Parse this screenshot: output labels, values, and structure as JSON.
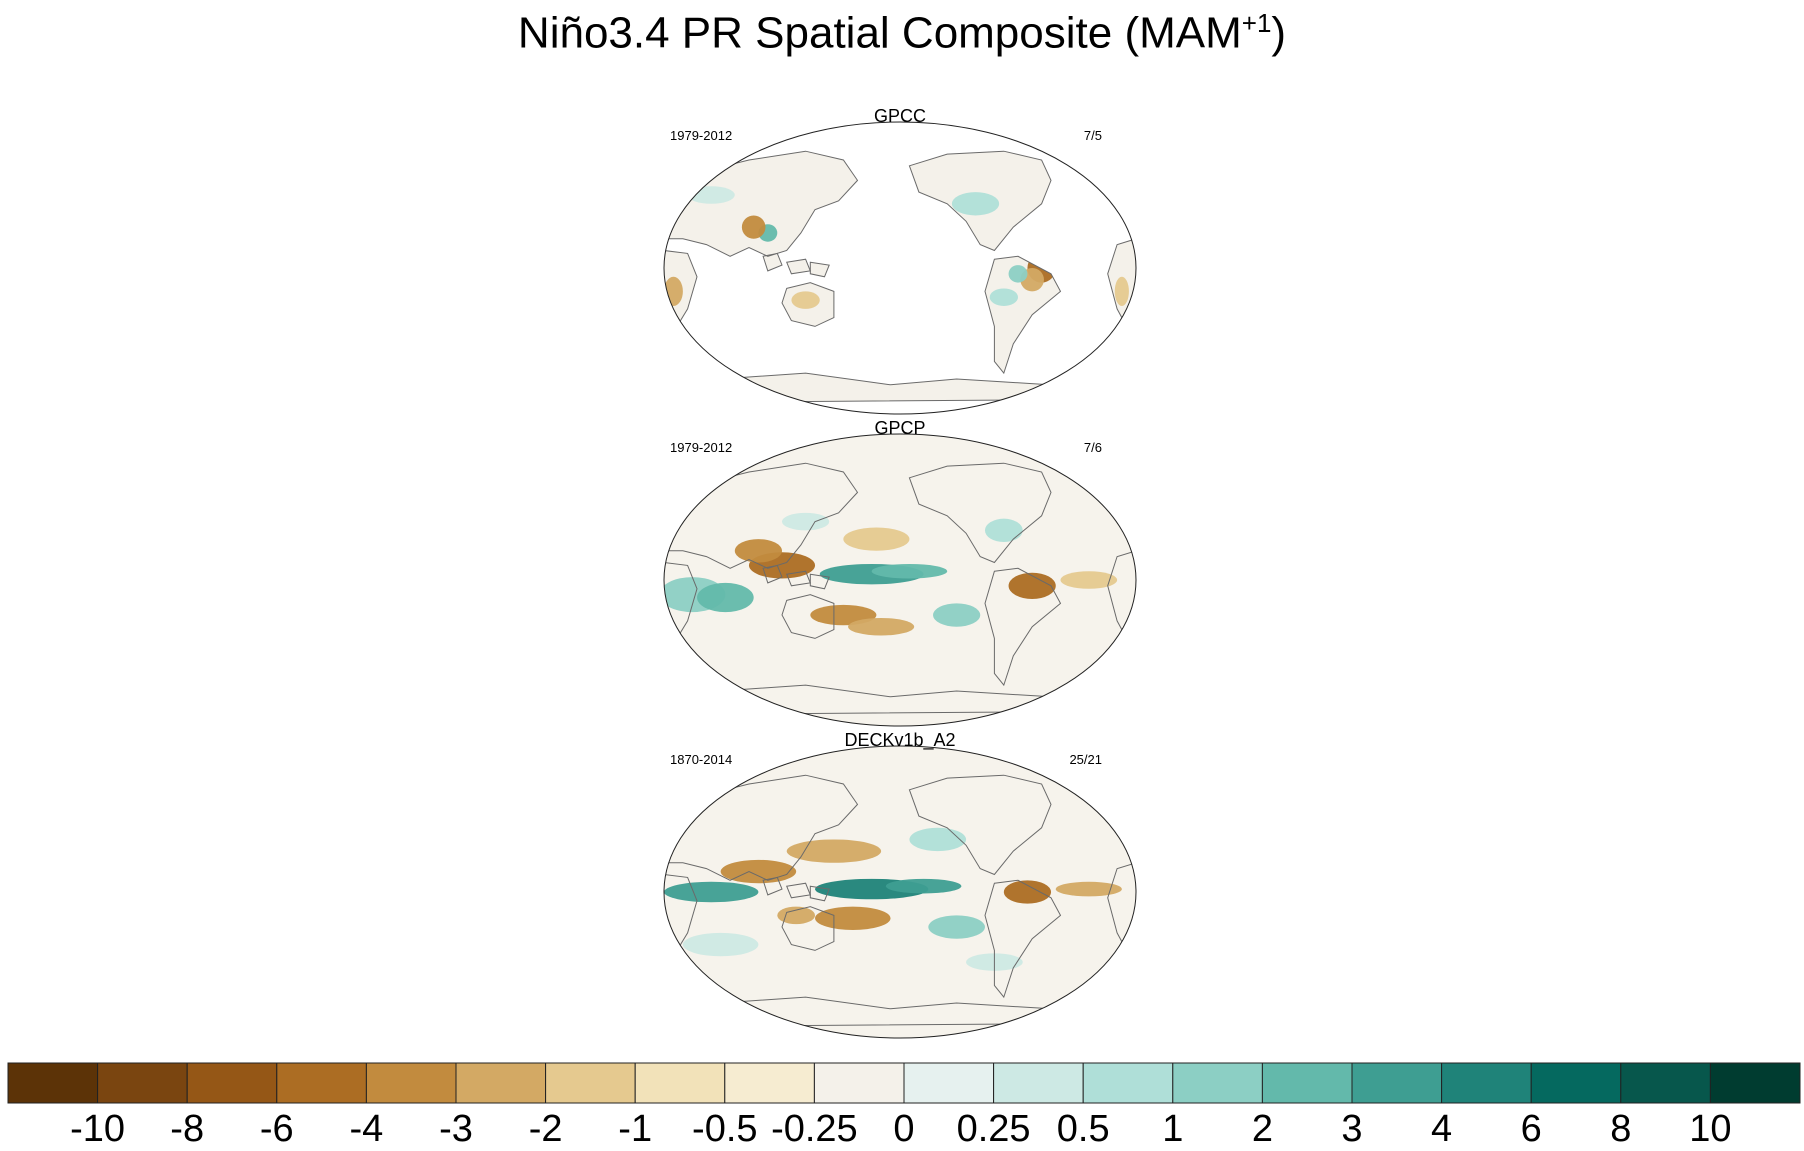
{
  "title": {
    "main": "Niño3.4 PR Spatial Composite (MAM",
    "sup": "+1",
    "close": ")"
  },
  "colors": {
    "land_outline": "#6a6a6a",
    "map_background": "#ffffff"
  },
  "chart_data": [
    {
      "type": "heatmap",
      "title": "GPCC",
      "period": "1979-2012",
      "events": "7/5",
      "projection": "Robinson, Pacific-centered",
      "coverage": "land only"
    },
    {
      "type": "heatmap",
      "title": "GPCP",
      "period": "1979-2012",
      "events": "7/6",
      "projection": "Robinson, Pacific-centered",
      "coverage": "global"
    },
    {
      "type": "heatmap",
      "title": "DECKv1b_A2",
      "period": "1870-2014",
      "events": "25/21",
      "projection": "Robinson, Pacific-centered",
      "coverage": "global"
    }
  ],
  "colorbar": {
    "labels": [
      "-10",
      "-8",
      "-6",
      "-4",
      "-3",
      "-2",
      "-1",
      "-0.5",
      "-0.25",
      "0",
      "0.25",
      "0.5",
      "1",
      "2",
      "3",
      "4",
      "6",
      "8",
      "10"
    ],
    "colors": [
      "#5c3307",
      "#7a4510",
      "#955716",
      "#ac6d23",
      "#c28b3e",
      "#d3a964",
      "#e5c98f",
      "#f2e2b9",
      "#f6ecd1",
      "#f4f1ea",
      "#e6f1ef",
      "#cde9e4",
      "#afdfd8",
      "#8ccfc4",
      "#63b9ab",
      "#3e9e92",
      "#1f8379",
      "#05695f",
      "#07574c",
      "#003c30"
    ]
  }
}
